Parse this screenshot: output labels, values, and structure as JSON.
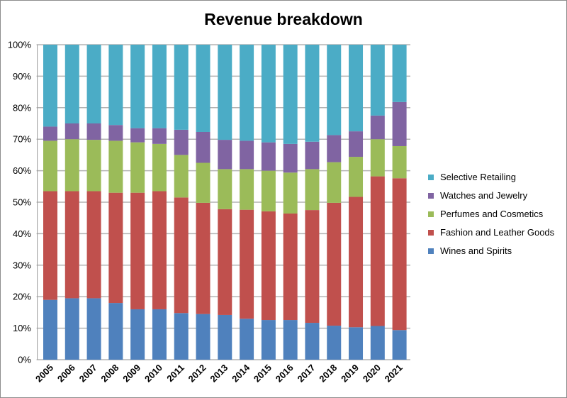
{
  "chart_data": {
    "type": "bar",
    "stacked": true,
    "normalized": true,
    "title": "Revenue breakdown",
    "xlabel": "",
    "ylabel": "",
    "ylim": [
      0,
      100
    ],
    "yticks": [
      "0%",
      "10%",
      "20%",
      "30%",
      "40%",
      "50%",
      "60%",
      "70%",
      "80%",
      "90%",
      "100%"
    ],
    "grid": true,
    "legend_position": "right",
    "categories": [
      "2005",
      "2006",
      "2007",
      "2008",
      "2009",
      "2010",
      "2011",
      "2012",
      "2013",
      "2014",
      "2015",
      "2016",
      "2017",
      "2018",
      "2019",
      "2020",
      "2021"
    ],
    "series": [
      {
        "name": "Wines and Spirits",
        "color": "#4F81BD",
        "values": [
          19,
          19.5,
          19.5,
          18,
          16,
          16,
          14.8,
          14.5,
          14.2,
          13,
          12.6,
          12.6,
          11.7,
          10.8,
          10.3,
          10.7,
          9.4
        ]
      },
      {
        "name": "Fashion and Leather Goods",
        "color": "#C0504D",
        "values": [
          34.5,
          34,
          34,
          35,
          37,
          37.5,
          36.7,
          35.3,
          33.6,
          34.6,
          34.5,
          33.8,
          35.8,
          39,
          41.4,
          47.5,
          48.2
        ]
      },
      {
        "name": "Perfumes and Cosmetics",
        "color": "#9BBB59",
        "values": [
          16,
          16.5,
          16.3,
          16.5,
          16,
          15,
          13.5,
          12.7,
          12.7,
          12.9,
          12.9,
          13,
          13,
          12.9,
          12.7,
          11.8,
          10.2
        ]
      },
      {
        "name": "Watches and Jewelry",
        "color": "#8064A2",
        "values": [
          4.5,
          5,
          5.2,
          5,
          4.5,
          5,
          8,
          9.8,
          9.3,
          9,
          9,
          9.1,
          8.7,
          8.6,
          8.1,
          7.5,
          14
        ]
      },
      {
        "name": "Selective Retailing",
        "color": "#4BACC6",
        "values": [
          26,
          25,
          25,
          25.5,
          26.5,
          26.5,
          27,
          27.7,
          30.2,
          30.5,
          31,
          31.5,
          30.8,
          28.7,
          27.5,
          22.5,
          18.2
        ]
      }
    ]
  }
}
